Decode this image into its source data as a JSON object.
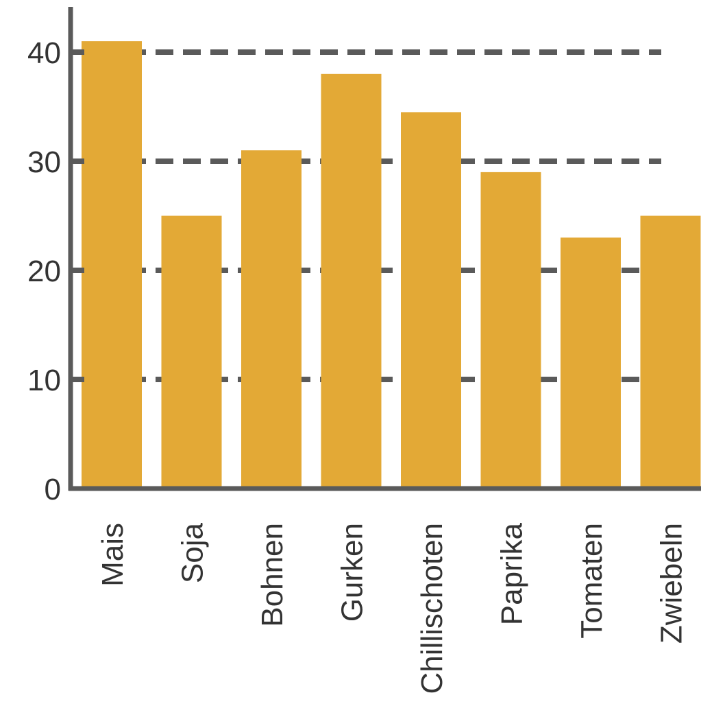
{
  "chart_data": {
    "type": "bar",
    "categories": [
      "Mais",
      "Soja",
      "Bohnen",
      "Gurken",
      "Chillischoten",
      "Paprika",
      "Tomaten",
      "Zwiebeln"
    ],
    "values": [
      41,
      25,
      31,
      38,
      34.5,
      29,
      23,
      25
    ],
    "ylim": [
      0,
      44
    ],
    "yticks": [
      0,
      10,
      20,
      30,
      40
    ],
    "gridlines": [
      10,
      20,
      30,
      40
    ],
    "grid": true,
    "grid_style": "dashed",
    "bar_color": "#E3A936",
    "axis_color": "#5a5a5a"
  }
}
